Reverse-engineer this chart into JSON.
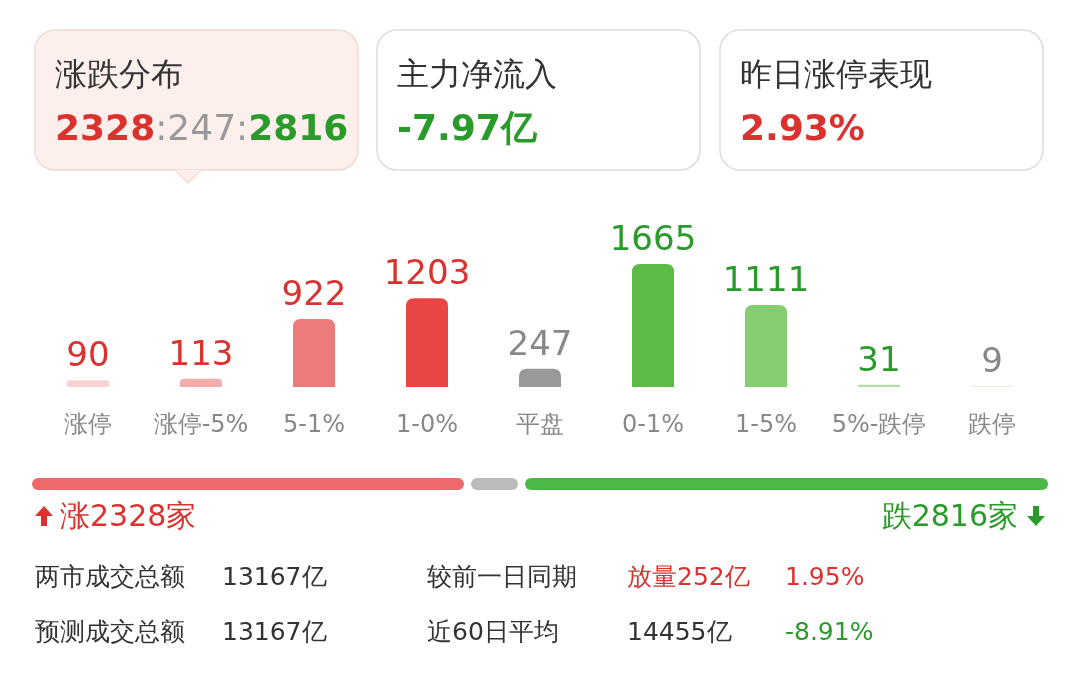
{
  "chart_data": [
    {
      "type": "other",
      "annotations": [
        "涨跌分布",
        "2328",
        ":247:",
        "2816",
        "主力净流入",
        "-7.97亿",
        "昨日涨停表现",
        "2.93%"
      ],
      "colors": [
        "#333333",
        "#d9322f",
        "#999999",
        "#2a9a2a",
        "#333333",
        "#2a9a2a",
        "#333333",
        "#d9322f"
      ]
    },
    {
      "type": "bar",
      "categories": [
        "涨停",
        "涨停-5%",
        "5-1%",
        "1-0%",
        "平盘",
        "0-1%",
        "1-5%",
        "5%-跌停",
        "跌停"
      ],
      "values": [
        90,
        113,
        922,
        1203,
        247,
        1665,
        1111,
        31,
        9
      ],
      "colors": [
        "#f8d3d3",
        "#f3adad",
        "#ee7b7b",
        "#e84545",
        "#999999",
        "#5bbb45",
        "#86cd72",
        "#b4e0a8",
        "#d7eed0"
      ],
      "data_labels": true
    },
    {
      "type": "other",
      "annotations": [
        "涨2328家",
        "跌2816家"
      ],
      "colors": [
        "#d9322f",
        "#2a9a2a"
      ]
    },
    {
      "type": "other",
      "annotations": [
        "两市成交总额",
        "13167亿",
        "较前一日同期",
        "放量252亿",
        "1.95%",
        "预测成交总额",
        "13167亿",
        "近60日平均",
        "14455亿",
        "-8.91%"
      ],
      "colors": [
        "#333333",
        "#333333",
        "#333333",
        "#d9322f",
        "#d9322f",
        "#333333",
        "#333333",
        "#333333",
        "#333333",
        "#2a9a2a"
      ]
    }
  ]
}
